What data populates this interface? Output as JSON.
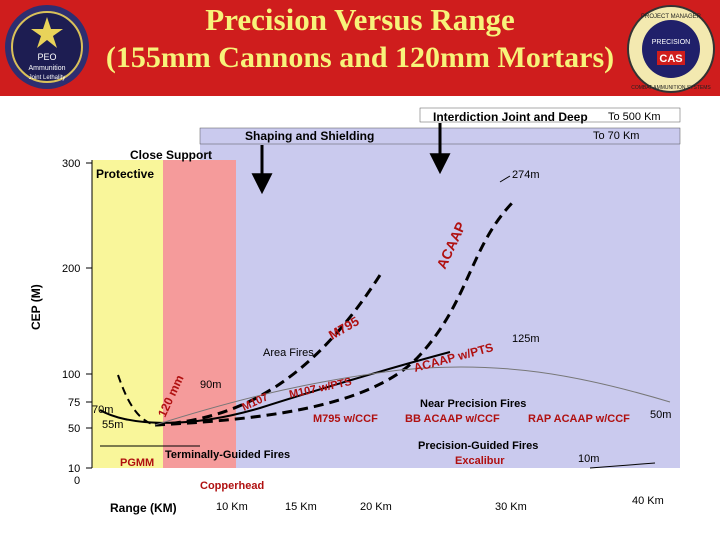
{
  "header": {
    "title_line1": "Precision Versus Range",
    "title_line2": "(155mm Cannons and 120mm Mortars)",
    "logo_left_text": [
      "PEO",
      "Ammunition",
      "Joint Lethality"
    ],
    "logo_right_text": [
      "PROJECT MANAGER",
      "COMBAT AMMUNITION SYSTEMS",
      "PRECISION",
      "CAS"
    ]
  },
  "colors": {
    "header_bg": "#cf1d1d",
    "title": "#f7f37a",
    "zone_yellow": "#f9f69a",
    "zone_pink": "#f59b9b",
    "zone_lavender": "#cacaee",
    "label_red": "#b01010"
  },
  "chart_data": {
    "type": "line",
    "ylabel": "CEP (M)",
    "y_ticks": [
      "300",
      "200",
      "100",
      "75",
      "50",
      "10",
      "0"
    ],
    "x_ticks": [
      "10 Km",
      "15 Km",
      "20 Km",
      "30 Km",
      "40 Km"
    ],
    "x_axis_title": "Range (KM)",
    "zones": [
      {
        "label": "Protective",
        "color": "yellow"
      },
      {
        "label": "Close Support",
        "color": "pink"
      },
      {
        "label": "Shaping and Shielding",
        "color": "lavender"
      },
      {
        "label": "Interdiction Joint and Deep",
        "color": "white"
      }
    ],
    "range_arrows": [
      {
        "label": "To 500 Km"
      },
      {
        "label": "To 70 Km"
      }
    ],
    "series": [
      {
        "name": "ACAAP",
        "style": "dashed"
      },
      {
        "name": "M795",
        "style": "dashed"
      },
      {
        "name": "120 mm",
        "style": "dashed"
      },
      {
        "name": "M107",
        "style": "solid"
      }
    ],
    "annotations": {
      "acaap_max": "274m",
      "acaap_pts_value": "125m",
      "mm120_value": "90m",
      "value_70m": "70m",
      "value_55m": "55m",
      "value_50m": "50m",
      "value_10m": "10m",
      "area_fires": "Area Fires",
      "m795": "M795",
      "acaap": "ACAAP",
      "acaap_pts": "ACAAP w/PTS",
      "m107_pts": "M107 w/PTS",
      "m795_ccf": "M795 w/CCF",
      "mm120": "120 mm",
      "m107": "M107",
      "near_precision_title": "Near Precision Fires",
      "bb_acaap": "BB ACAAP w/CCF",
      "rap_acaap": "RAP ACAAP w/CCF",
      "precision_guided": "Precision-Guided Fires",
      "excalibur": "Excalibur",
      "terminally_guided": "Terminally-Guided Fires",
      "pgmm": "PGMM",
      "copperhead": "Copperhead"
    }
  }
}
